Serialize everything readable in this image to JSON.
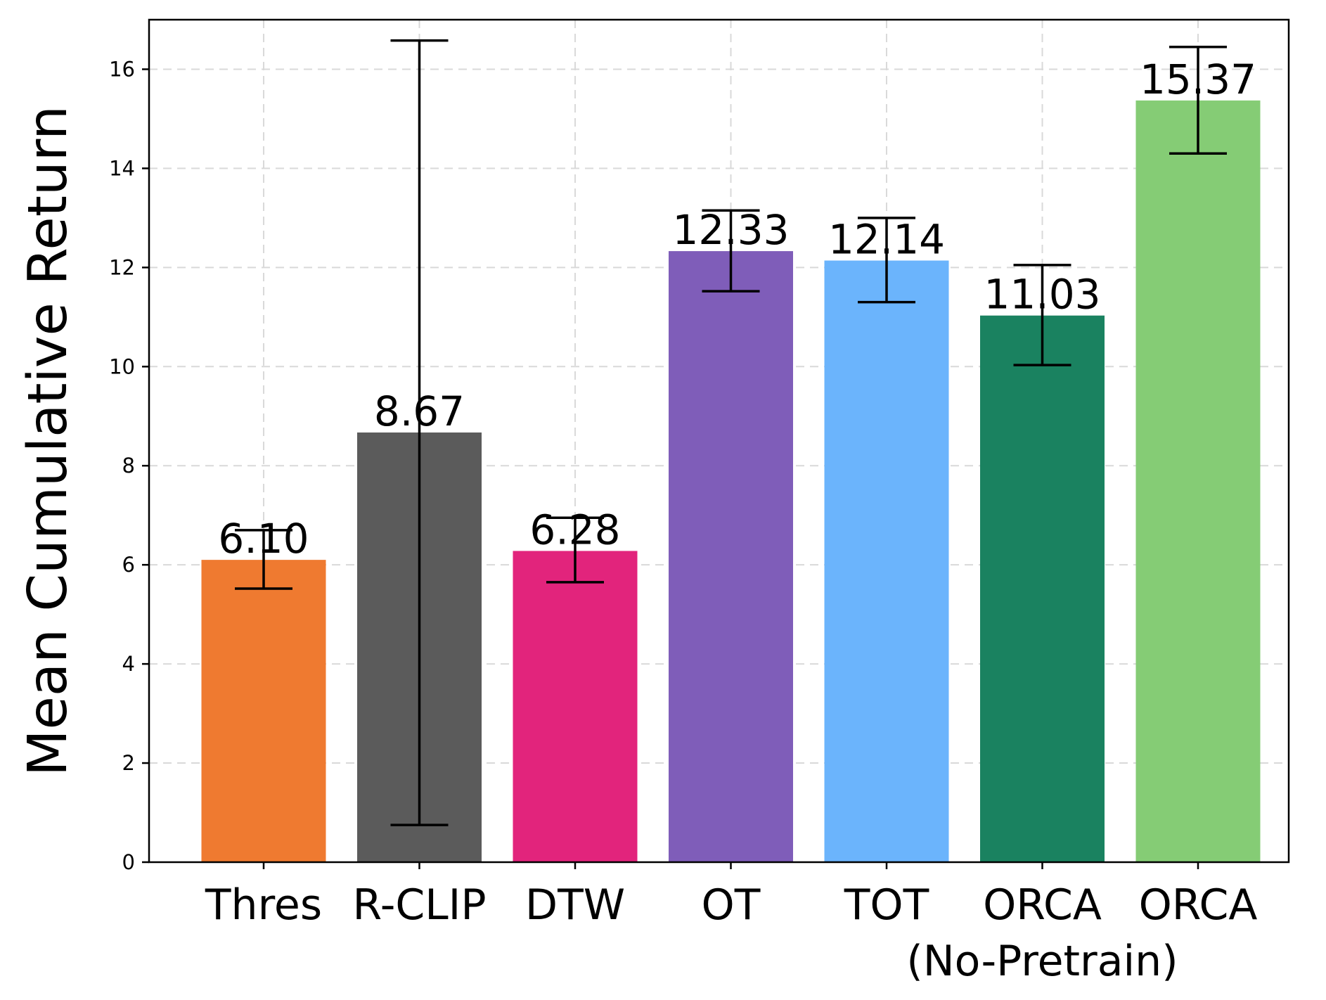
{
  "chart_data": {
    "type": "bar",
    "categories": [
      "Thres",
      "R-CLIP",
      "DTW",
      "OT",
      "TOT",
      "ORCA",
      "ORCA"
    ],
    "category_sublabels": [
      "",
      "",
      "",
      "",
      "",
      "(No-Pretrain)",
      ""
    ],
    "values": [
      6.1,
      8.67,
      6.28,
      12.33,
      12.14,
      11.03,
      15.37
    ],
    "value_labels": [
      "6.10",
      "8.67",
      "6.28",
      "12.33",
      "12.14",
      "11.03",
      "15.37"
    ],
    "error_low": [
      5.52,
      0.75,
      5.65,
      11.52,
      11.3,
      10.03,
      14.3
    ],
    "error_high": [
      6.7,
      16.58,
      6.95,
      13.15,
      13.0,
      12.05,
      16.45
    ],
    "colors": [
      "#ef7a30",
      "#5b5b5b",
      "#e2247c",
      "#7f5db9",
      "#6bb4fc",
      "#1a8260",
      "#85cc75"
    ],
    "ylabel": "Mean Cumulative Return",
    "xlabel": "",
    "ylim": [
      0,
      17
    ],
    "yticks": [
      0,
      2,
      4,
      6,
      8,
      10,
      12,
      14,
      16
    ],
    "grid": true
  }
}
